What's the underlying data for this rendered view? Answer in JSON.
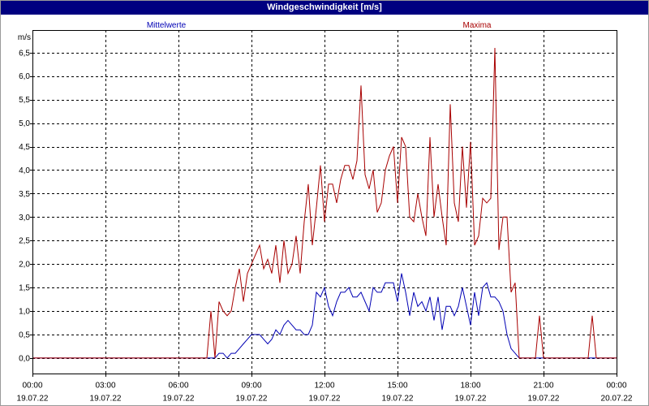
{
  "colors": {
    "title_bar_background": "#000080",
    "title_bar_text": "#ffffff",
    "grid": "#000000"
  },
  "chart_data": {
    "type": "line",
    "title": "Windgeschwindigkeit [m/s]",
    "ylabel": "m/s",
    "xlim": [
      "19.07.22 00:00",
      "20.07.22 00:00"
    ],
    "ylim": [
      -0.33,
      6.98
    ],
    "grid": true,
    "legend": "top",
    "xticks": [
      {
        "time": "00:00",
        "date": "19.07.22"
      },
      {
        "time": "03:00",
        "date": "19.07.22"
      },
      {
        "time": "06:00",
        "date": "19.07.22"
      },
      {
        "time": "09:00",
        "date": "19.07.22"
      },
      {
        "time": "12:00",
        "date": "19.07.22"
      },
      {
        "time": "15:00",
        "date": "19.07.22"
      },
      {
        "time": "18:00",
        "date": "19.07.22"
      },
      {
        "time": "21:00",
        "date": "19.07.22"
      },
      {
        "time": "00:00",
        "date": "20.07.22"
      }
    ],
    "yticks": [
      {
        "value": 0.0,
        "label": "0,0"
      },
      {
        "value": 0.5,
        "label": "0,5"
      },
      {
        "value": 1.0,
        "label": "1,0"
      },
      {
        "value": 1.5,
        "label": "1,5"
      },
      {
        "value": 2.0,
        "label": "2,0"
      },
      {
        "value": 2.5,
        "label": "2,5"
      },
      {
        "value": 3.0,
        "label": "3,0"
      },
      {
        "value": 3.5,
        "label": "3,5"
      },
      {
        "value": 4.0,
        "label": "4,0"
      },
      {
        "value": 4.5,
        "label": "4,5"
      },
      {
        "value": 5.0,
        "label": "5,0"
      },
      {
        "value": 5.5,
        "label": "5,5"
      },
      {
        "value": 6.0,
        "label": "6,0"
      },
      {
        "value": 6.5,
        "label": "6,5"
      }
    ],
    "x": [
      "19.07.22 00:00",
      "19.07.22 07:10",
      "19.07.22 07:20",
      "19.07.22 07:30",
      "19.07.22 07:40",
      "19.07.22 07:50",
      "19.07.22 08:00",
      "19.07.22 08:10",
      "19.07.22 08:20",
      "19.07.22 08:30",
      "19.07.22 08:40",
      "19.07.22 08:50",
      "19.07.22 09:00",
      "19.07.22 09:10",
      "19.07.22 09:20",
      "19.07.22 09:30",
      "19.07.22 09:40",
      "19.07.22 09:50",
      "19.07.22 10:00",
      "19.07.22 10:10",
      "19.07.22 10:20",
      "19.07.22 10:30",
      "19.07.22 10:40",
      "19.07.22 10:50",
      "19.07.22 11:00",
      "19.07.22 11:10",
      "19.07.22 11:20",
      "19.07.22 11:30",
      "19.07.22 11:40",
      "19.07.22 11:50",
      "19.07.22 12:00",
      "19.07.22 12:10",
      "19.07.22 12:20",
      "19.07.22 12:30",
      "19.07.22 12:40",
      "19.07.22 12:50",
      "19.07.22 13:00",
      "19.07.22 13:10",
      "19.07.22 13:20",
      "19.07.22 13:30",
      "19.07.22 13:40",
      "19.07.22 13:50",
      "19.07.22 14:00",
      "19.07.22 14:10",
      "19.07.22 14:20",
      "19.07.22 14:30",
      "19.07.22 14:40",
      "19.07.22 14:50",
      "19.07.22 15:00",
      "19.07.22 15:10",
      "19.07.22 15:20",
      "19.07.22 15:30",
      "19.07.22 15:40",
      "19.07.22 15:50",
      "19.07.22 16:00",
      "19.07.22 16:10",
      "19.07.22 16:20",
      "19.07.22 16:30",
      "19.07.22 16:40",
      "19.07.22 16:50",
      "19.07.22 17:00",
      "19.07.22 17:10",
      "19.07.22 17:20",
      "19.07.22 17:30",
      "19.07.22 17:40",
      "19.07.22 17:50",
      "19.07.22 18:00",
      "19.07.22 18:10",
      "19.07.22 18:20",
      "19.07.22 18:30",
      "19.07.22 18:40",
      "19.07.22 18:50",
      "19.07.22 19:00",
      "19.07.22 19:10",
      "19.07.22 19:20",
      "19.07.22 19:30",
      "19.07.22 19:40",
      "19.07.22 19:50",
      "19.07.22 20:00",
      "19.07.22 20:40",
      "19.07.22 20:50",
      "19.07.22 21:00",
      "19.07.22 22:50",
      "19.07.22 23:00",
      "19.07.22 23:10",
      "20.07.22 00:00"
    ],
    "series": [
      {
        "name": "Mittelwerte",
        "color": "#0000b4",
        "values": [
          0,
          0,
          0,
          0,
          0.1,
          0.1,
          0.0,
          0.1,
          0.1,
          0.2,
          0.3,
          0.4,
          0.5,
          0.5,
          0.5,
          0.4,
          0.3,
          0.4,
          0.6,
          0.5,
          0.7,
          0.8,
          0.7,
          0.6,
          0.6,
          0.5,
          0.5,
          0.7,
          1.4,
          1.3,
          1.5,
          1.1,
          0.9,
          1.2,
          1.4,
          1.4,
          1.5,
          1.3,
          1.3,
          1.4,
          1.2,
          1.0,
          1.5,
          1.4,
          1.4,
          1.6,
          1.6,
          1.6,
          1.2,
          1.8,
          1.4,
          0.9,
          1.4,
          1.1,
          1.2,
          1.0,
          1.3,
          0.8,
          1.3,
          0.6,
          1.1,
          1.1,
          0.9,
          1.1,
          1.5,
          1.1,
          0.7,
          1.4,
          0.9,
          1.5,
          1.6,
          1.3,
          1.3,
          1.2,
          1.0,
          0.5,
          0.2,
          0.1,
          0.0,
          0,
          0,
          0,
          0,
          0,
          0,
          0
        ]
      },
      {
        "name": "Maxima",
        "color": "#a80000",
        "values": [
          0,
          0,
          1.0,
          0,
          1.2,
          1.0,
          0.9,
          1.0,
          1.5,
          1.9,
          1.2,
          1.8,
          2.0,
          2.2,
          2.4,
          1.9,
          2.1,
          1.8,
          2.4,
          1.6,
          2.5,
          1.8,
          2.0,
          2.6,
          1.8,
          2.9,
          3.7,
          2.4,
          3.2,
          4.1,
          2.9,
          3.7,
          3.7,
          3.3,
          3.8,
          4.1,
          4.1,
          3.8,
          4.2,
          5.8,
          3.9,
          3.6,
          4.0,
          3.1,
          3.3,
          4.0,
          4.3,
          4.5,
          3.3,
          4.7,
          4.5,
          3.0,
          2.9,
          3.5,
          3.0,
          2.6,
          4.7,
          3.0,
          3.7,
          3.0,
          2.4,
          5.4,
          3.3,
          2.9,
          4.5,
          3.2,
          4.6,
          2.4,
          2.6,
          3.4,
          3.3,
          3.4,
          6.6,
          2.3,
          3.0,
          3.0,
          1.4,
          1.6,
          0.0,
          0,
          0.9,
          0,
          0,
          0.9,
          0,
          0
        ]
      }
    ]
  }
}
